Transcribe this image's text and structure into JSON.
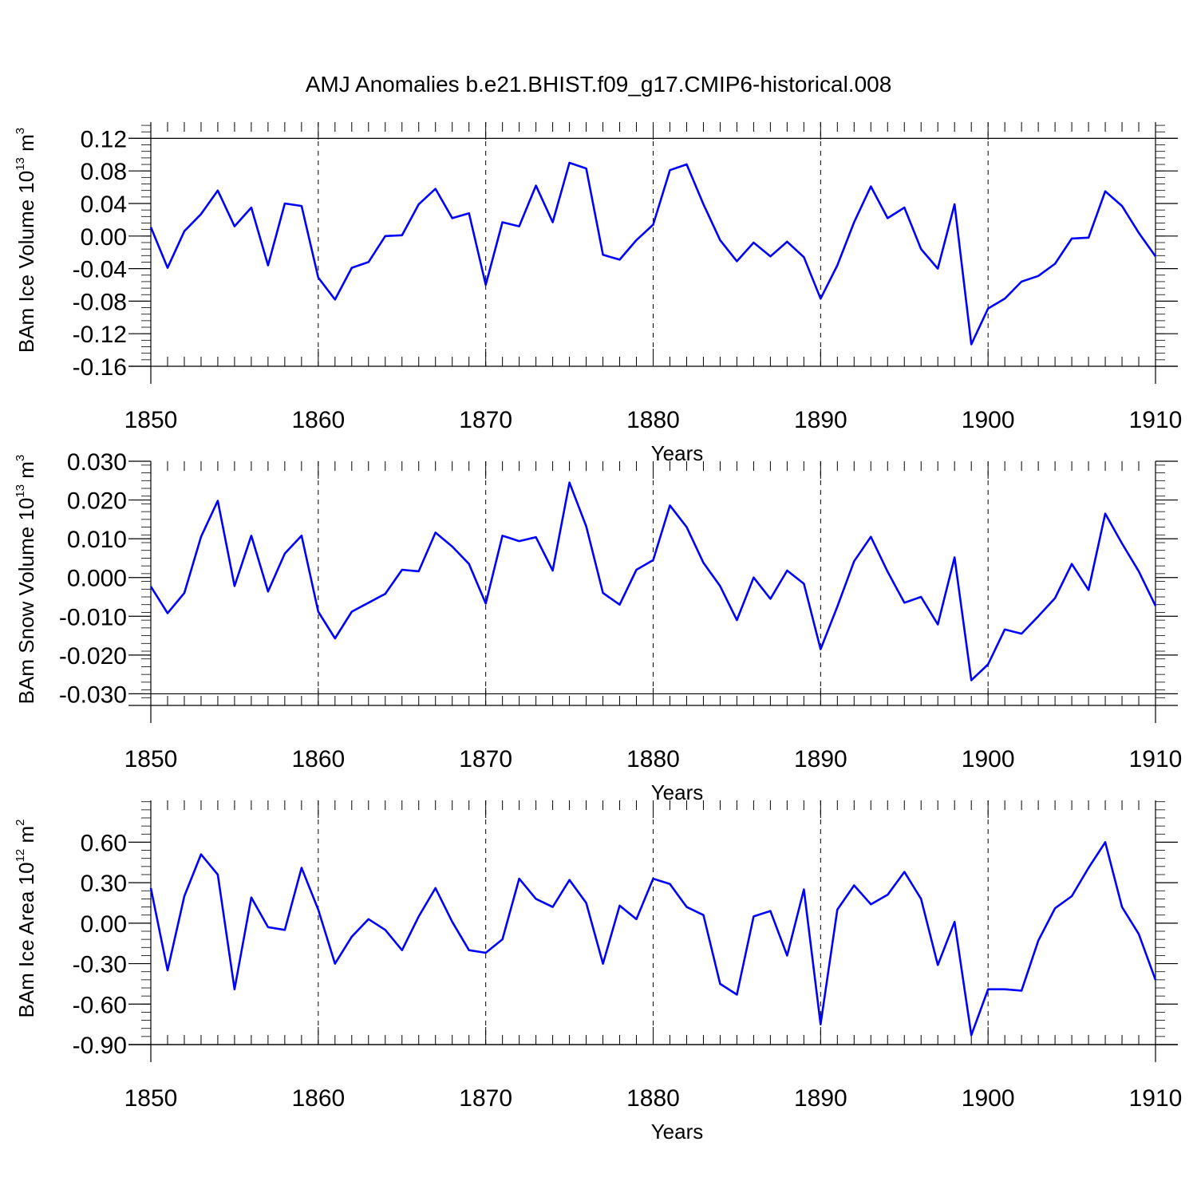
{
  "figure_title": "AMJ Anomalies b.e21.BHIST.f09_g17.CMIP6-historical.008",
  "colors": {
    "line": "#0000ff",
    "axis": "#000000",
    "grid": "#000000"
  },
  "chart_data": [
    {
      "type": "line",
      "title": "",
      "xlabel": "Years",
      "ylabel": "BAm Ice Volume 10",
      "ylabel_exp": "13",
      "ylabel_unit": " m",
      "ylabel_unit_exp": "3",
      "xlim": [
        1850,
        1910
      ],
      "ylim": [
        -0.16,
        0.14
      ],
      "xticks": [
        1850,
        1860,
        1870,
        1880,
        1890,
        1900,
        1910
      ],
      "xtick_labels": [
        "1850",
        "1860",
        "1870",
        "1880",
        "1890",
        "1900",
        "1910"
      ],
      "yticks": [
        -0.16,
        -0.12,
        -0.08,
        -0.04,
        0.0,
        0.04,
        0.08,
        0.12
      ],
      "ytick_labels": [
        "-0.16",
        "-0.12",
        "-0.08",
        "-0.04",
        "0.00",
        "0.04",
        "0.08",
        "0.12"
      ],
      "vgrid": [
        1860,
        1870,
        1880,
        1890,
        1900
      ],
      "hline": 0.12,
      "series": [
        {
          "values": [
            0.011,
            -0.039,
            0.006,
            0.027,
            0.056,
            0.012,
            0.035,
            -0.036,
            0.04,
            0.037,
            -0.051,
            -0.078,
            -0.039,
            -0.032,
            0.0,
            0.001,
            0.039,
            0.058,
            0.022,
            0.028,
            -0.06,
            0.017,
            0.012,
            0.062,
            0.017,
            0.09,
            0.083,
            -0.023,
            -0.029,
            -0.005,
            0.014,
            0.081,
            0.088,
            0.039,
            -0.005,
            -0.031,
            -0.008,
            -0.025,
            -0.007,
            -0.026,
            -0.077,
            -0.036,
            0.017,
            0.061,
            0.022,
            0.035,
            -0.016,
            -0.04,
            0.039,
            -0.133,
            -0.089,
            -0.077,
            -0.056,
            -0.049,
            -0.034,
            -0.003,
            -0.002,
            0.055,
            0.037,
            0.004,
            -0.025
          ]
        }
      ]
    },
    {
      "type": "line",
      "title": "",
      "xlabel": "Years",
      "ylabel": "BAm Snow Volume 10",
      "ylabel_exp": "13",
      "ylabel_unit": " m",
      "ylabel_unit_exp": "3",
      "xlim": [
        1850,
        1910
      ],
      "ylim": [
        -0.033,
        0.03
      ],
      "xticks": [
        1850,
        1860,
        1870,
        1880,
        1890,
        1900,
        1910
      ],
      "xtick_labels": [
        "1850",
        "1860",
        "1870",
        "1880",
        "1890",
        "1900",
        "1910"
      ],
      "yticks": [
        -0.03,
        -0.02,
        -0.01,
        0.0,
        0.01,
        0.02,
        0.03
      ],
      "ytick_labels": [
        "-0.030",
        "-0.020",
        "-0.010",
        "0.000",
        "0.010",
        "0.020",
        "0.030"
      ],
      "vgrid": [
        1860,
        1870,
        1880,
        1890,
        1900
      ],
      "hline": -0.03,
      "series": [
        {
          "values": [
            -0.0023,
            -0.0092,
            -0.004,
            0.0105,
            0.0198,
            -0.0022,
            0.0108,
            -0.0036,
            0.0062,
            0.0108,
            -0.0088,
            -0.0157,
            -0.0088,
            -0.0065,
            -0.0042,
            0.002,
            0.0016,
            0.0116,
            0.008,
            0.0035,
            -0.0067,
            0.0108,
            0.0094,
            0.0104,
            0.0018,
            0.0245,
            0.0132,
            -0.004,
            -0.007,
            0.002,
            0.0045,
            0.0186,
            0.013,
            0.0038,
            -0.0022,
            -0.011,
            0.0,
            -0.0055,
            0.0018,
            -0.0016,
            -0.0185,
            -0.0075,
            0.0042,
            0.0105,
            0.0015,
            -0.0065,
            -0.005,
            -0.0121,
            0.0052,
            -0.0265,
            -0.0224,
            -0.0134,
            -0.0145,
            -0.01,
            -0.0053,
            0.0035,
            -0.0032,
            0.0165,
            0.0088,
            0.0016,
            -0.0073
          ]
        }
      ]
    },
    {
      "type": "line",
      "title": "",
      "xlabel": "Years",
      "ylabel": "BAm Ice Area 10",
      "ylabel_exp": "12",
      "ylabel_unit": " m",
      "ylabel_unit_exp": "2",
      "xlim": [
        1850,
        1910
      ],
      "ylim": [
        -0.9,
        0.91
      ],
      "xticks": [
        1850,
        1860,
        1870,
        1880,
        1890,
        1900,
        1910
      ],
      "xtick_labels": [
        "1850",
        "1860",
        "1870",
        "1880",
        "1890",
        "1900",
        "1910"
      ],
      "yticks": [
        -0.9,
        -0.6,
        -0.3,
        0.0,
        0.3,
        0.6
      ],
      "ytick_labels": [
        "-0.90",
        "-0.60",
        "-0.30",
        "0.00",
        "0.30",
        "0.60"
      ],
      "vgrid": [
        1860,
        1870,
        1880,
        1890,
        1900
      ],
      "hline": -0.9,
      "series": [
        {
          "values": [
            0.26,
            -0.35,
            0.2,
            0.51,
            0.36,
            -0.49,
            0.19,
            -0.03,
            -0.05,
            0.41,
            0.1,
            -0.3,
            -0.1,
            0.03,
            -0.05,
            -0.2,
            0.05,
            0.26,
            0.01,
            -0.2,
            -0.22,
            -0.12,
            0.33,
            0.18,
            0.12,
            0.32,
            0.15,
            -0.3,
            0.13,
            0.03,
            0.33,
            0.29,
            0.12,
            0.06,
            -0.45,
            -0.53,
            0.05,
            0.09,
            -0.24,
            0.25,
            -0.75,
            0.1,
            0.28,
            0.14,
            0.21,
            0.38,
            0.18,
            -0.31,
            0.01,
            -0.83,
            -0.49,
            -0.49,
            -0.5,
            -0.13,
            0.11,
            0.2,
            0.41,
            0.6,
            0.12,
            -0.08,
            -0.42
          ]
        }
      ]
    }
  ]
}
